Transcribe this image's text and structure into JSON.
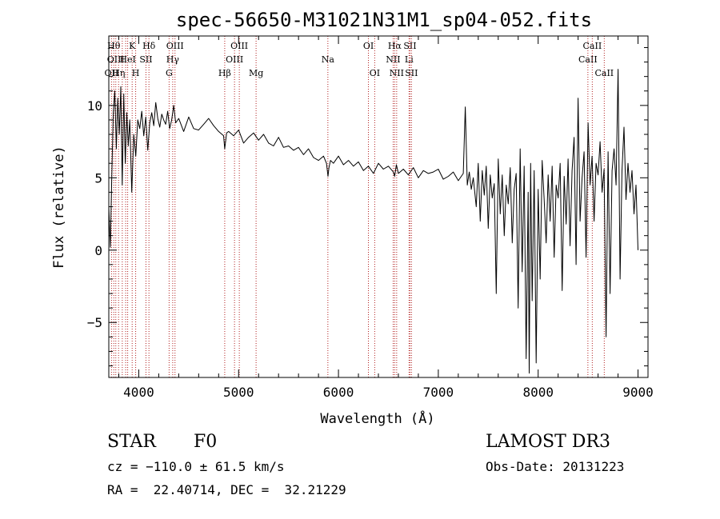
{
  "chart_data": {
    "type": "line",
    "title": "spec-56650-M31021N31M1_sp04-052.fits",
    "xlabel": "Wavelength (Å)",
    "ylabel": "Flux (relative)",
    "xlim": [
      3700,
      9100
    ],
    "ylim": [
      -8.8,
      14.8
    ],
    "x_ticks": [
      4000,
      5000,
      6000,
      7000,
      8000,
      9000
    ],
    "x_tick_labels": [
      "4000",
      "5000",
      "6000",
      "7000",
      "8000",
      "9000"
    ],
    "y_ticks": [
      -5,
      0,
      5,
      10
    ],
    "y_tick_labels": [
      "−5",
      "0",
      "5",
      "10"
    ],
    "line_color": "#000000",
    "line_marker_color": "#b22222",
    "series": [
      {
        "name": "flux",
        "x": [
          3700,
          3715,
          3730,
          3745,
          3760,
          3775,
          3790,
          3805,
          3820,
          3835,
          3850,
          3865,
          3880,
          3895,
          3910,
          3930,
          3950,
          3970,
          3990,
          4010,
          4030,
          4050,
          4070,
          4090,
          4110,
          4130,
          4150,
          4170,
          4190,
          4210,
          4230,
          4250,
          4270,
          4290,
          4310,
          4330,
          4350,
          4370,
          4400,
          4450,
          4500,
          4550,
          4600,
          4650,
          4700,
          4750,
          4800,
          4850,
          4861,
          4880,
          4900,
          4950,
          5000,
          5050,
          5100,
          5150,
          5200,
          5250,
          5300,
          5350,
          5400,
          5450,
          5500,
          5550,
          5600,
          5650,
          5700,
          5750,
          5800,
          5850,
          5880,
          5895,
          5905,
          5920,
          5950,
          6000,
          6050,
          6100,
          6150,
          6200,
          6250,
          6300,
          6350,
          6400,
          6450,
          6500,
          6550,
          6563,
          6580,
          6600,
          6650,
          6700,
          6750,
          6800,
          6850,
          6900,
          6950,
          7000,
          7050,
          7100,
          7150,
          7200,
          7250,
          7270,
          7290,
          7310,
          7330,
          7350,
          7380,
          7400,
          7420,
          7440,
          7460,
          7480,
          7500,
          7520,
          7540,
          7560,
          7580,
          7600,
          7620,
          7640,
          7660,
          7680,
          7700,
          7720,
          7740,
          7760,
          7780,
          7800,
          7820,
          7840,
          7860,
          7880,
          7900,
          7910,
          7925,
          7940,
          7960,
          7980,
          8000,
          8020,
          8040,
          8060,
          8080,
          8100,
          8120,
          8140,
          8160,
          8180,
          8200,
          8220,
          8240,
          8260,
          8280,
          8300,
          8320,
          8340,
          8360,
          8380,
          8400,
          8420,
          8440,
          8460,
          8480,
          8500,
          8520,
          8540,
          8560,
          8580,
          8600,
          8620,
          8640,
          8660,
          8680,
          8700,
          8720,
          8740,
          8760,
          8780,
          8800,
          8820,
          8840,
          8860,
          8880,
          8900,
          8920,
          8940,
          8960,
          8980,
          9000
        ],
        "y": [
          3.0,
          0.2,
          5.0,
          9.5,
          11.0,
          7.0,
          10.5,
          8.0,
          11.3,
          4.5,
          10.8,
          6.0,
          9.5,
          7.2,
          9.0,
          4.0,
          8.0,
          6.5,
          9.0,
          8.4,
          9.6,
          7.9,
          9.2,
          6.9,
          8.8,
          9.5,
          8.6,
          10.2,
          9.1,
          8.5,
          9.4,
          9.0,
          8.7,
          9.6,
          8.4,
          9.0,
          10.0,
          8.8,
          9.1,
          8.2,
          9.2,
          8.4,
          8.3,
          8.7,
          9.1,
          8.6,
          8.2,
          7.9,
          7.0,
          8.1,
          8.2,
          7.9,
          8.3,
          7.4,
          7.8,
          8.1,
          7.6,
          8.0,
          7.4,
          7.2,
          7.8,
          7.1,
          7.2,
          6.9,
          7.1,
          6.6,
          7.0,
          6.4,
          6.2,
          6.5,
          6.0,
          5.1,
          5.7,
          6.2,
          6.0,
          6.5,
          5.9,
          6.2,
          5.8,
          6.1,
          5.5,
          5.8,
          5.3,
          6.0,
          5.6,
          5.8,
          5.4,
          5.1,
          5.9,
          5.3,
          5.6,
          5.2,
          5.7,
          5.0,
          5.5,
          5.3,
          5.4,
          5.6,
          4.9,
          5.1,
          5.4,
          4.8,
          5.3,
          9.9,
          4.5,
          5.4,
          4.2,
          5.0,
          3.0,
          6.0,
          2.0,
          5.5,
          3.8,
          5.8,
          1.5,
          5.2,
          3.6,
          4.6,
          -3.0,
          6.3,
          2.5,
          5.2,
          1.0,
          4.5,
          3.2,
          5.7,
          0.5,
          4.2,
          5.3,
          -4.0,
          7.0,
          -1.5,
          5.8,
          -7.5,
          4.0,
          -8.5,
          6.0,
          -3.5,
          5.5,
          -7.8,
          4.2,
          -2.0,
          6.2,
          3.5,
          0.5,
          5.2,
          2.0,
          5.8,
          -0.5,
          4.5,
          3.6,
          6.0,
          -2.8,
          5.1,
          1.8,
          6.3,
          0.3,
          5.5,
          7.8,
          -1.0,
          10.5,
          2.0,
          5.0,
          6.8,
          -0.5,
          8.8,
          4.5,
          6.5,
          2.0,
          6.0,
          5.2,
          7.5,
          4.0,
          5.6,
          -6.0,
          6.8,
          -3.0,
          5.5,
          7.0,
          4.5,
          12.5,
          -2.0,
          5.5,
          8.5,
          3.5,
          6.0,
          4.0,
          5.5,
          2.5,
          4.5,
          0.0
        ]
      }
    ],
    "line_markers": [
      {
        "x": 3727,
        "label": "OII",
        "row": 3
      },
      {
        "x": 3750,
        "label": "Hθ",
        "row": 1
      },
      {
        "x": 3770,
        "label": "OIII",
        "row": 2
      },
      {
        "x": 3798,
        "label": "Hη",
        "row": 3
      },
      {
        "x": 3835,
        "label": "",
        "row": 0
      },
      {
        "x": 3869,
        "label": "",
        "row": 0
      },
      {
        "x": 3889,
        "label": "HeI",
        "row": 2
      },
      {
        "x": 3934,
        "label": "K",
        "row": 1
      },
      {
        "x": 3969,
        "label": "H",
        "row": 3
      },
      {
        "x": 4072,
        "label": "SII",
        "row": 2
      },
      {
        "x": 4102,
        "label": "Hδ",
        "row": 1
      },
      {
        "x": 4304,
        "label": "G",
        "row": 3
      },
      {
        "x": 4340,
        "label": "Hγ",
        "row": 2
      },
      {
        "x": 4363,
        "label": "OIII",
        "row": 1
      },
      {
        "x": 4861,
        "label": "Hβ",
        "row": 3
      },
      {
        "x": 4959,
        "label": "OIII",
        "row": 2
      },
      {
        "x": 5007,
        "label": "OIII",
        "row": 1
      },
      {
        "x": 5175,
        "label": "Mg",
        "row": 3
      },
      {
        "x": 5894,
        "label": "Na",
        "row": 2
      },
      {
        "x": 6300,
        "label": "OI",
        "row": 1
      },
      {
        "x": 6363,
        "label": "OI",
        "row": 3
      },
      {
        "x": 6548,
        "label": "NII",
        "row": 2
      },
      {
        "x": 6563,
        "label": "Hα",
        "row": 1
      },
      {
        "x": 6583,
        "label": "NII",
        "row": 3
      },
      {
        "x": 6707,
        "label": "Li",
        "row": 2
      },
      {
        "x": 6716,
        "label": "SII",
        "row": 1
      },
      {
        "x": 6731,
        "label": "SII",
        "row": 3
      },
      {
        "x": 8498,
        "label": "CaII",
        "row": 2
      },
      {
        "x": 8542,
        "label": "CaII",
        "row": 1
      },
      {
        "x": 8662,
        "label": "CaII",
        "row": 3
      }
    ]
  },
  "info": {
    "class_label": "STAR",
    "subclass_label": "F0",
    "survey_label": "LAMOST DR3",
    "cz_text": "cz = −110.0 ± 61.5 km/s",
    "obs_date_text": "Obs-Date: 20131223",
    "radec_text": "RA =  22.40714, DEC =  32.21229"
  }
}
